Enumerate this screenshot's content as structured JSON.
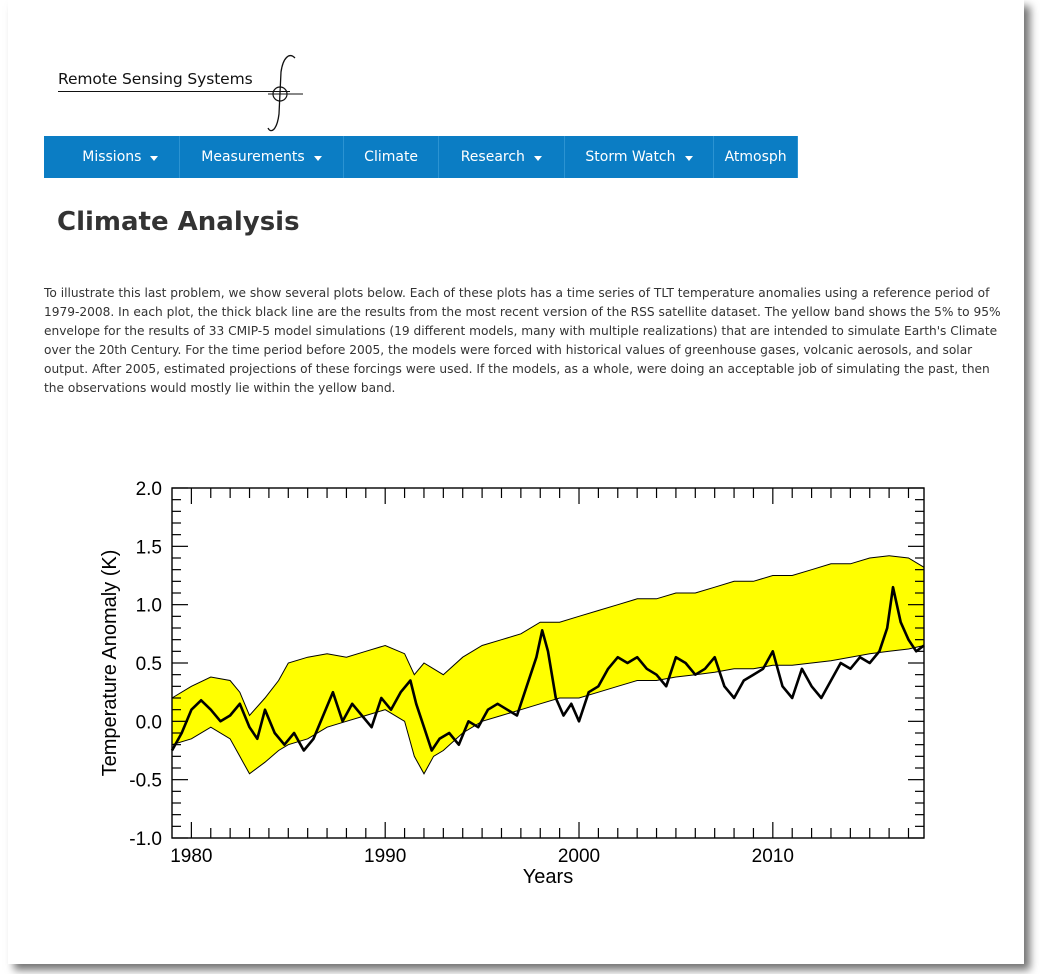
{
  "brand": {
    "name": "Remote Sensing Systems"
  },
  "nav": {
    "items": [
      {
        "label": "Missions",
        "dropdown": true
      },
      {
        "label": "Measurements",
        "dropdown": true
      },
      {
        "label": "Climate",
        "dropdown": false
      },
      {
        "label": "Research",
        "dropdown": true
      },
      {
        "label": "Storm Watch",
        "dropdown": true
      },
      {
        "label": "Atmosph",
        "dropdown": false
      }
    ],
    "color": "#0b7dc4"
  },
  "page": {
    "title": "Climate Analysis",
    "intro": "To illustrate this last problem, we show several plots below.  Each of these plots has a time series of TLT temperature anomalies using a reference period of 1979-2008.  In each plot, the thick black line are the results from the most recent version of the RSS satellite dataset.  The yellow band shows the 5% to 95% envelope for the results of 33 CMIP-5 model simulations (19 different models, many with multiple realizations) that are intended to simulate Earth's Climate over the 20th Century.  For the time period before 2005, the models were forced with historical values of greenhouse gases, volcanic aerosols, and solar output.  After 2005, estimated projections of these forcings were used. If the models, as a whole, were doing an acceptable job of simulating the past, then the observations would mostly lie within the yellow band."
  },
  "chart_data": {
    "type": "area",
    "title": "",
    "xlabel": "Years",
    "ylabel": "Temperature Anomaly (K)",
    "xlim": [
      1979,
      2017.8
    ],
    "ylim": [
      -1.0,
      2.0
    ],
    "xticks": [
      1980,
      1990,
      2000,
      2010
    ],
    "yticks": [
      "2.0",
      "1.5",
      "1.0",
      "0.5",
      "0.0",
      "-0.5",
      "-1.0"
    ],
    "grid": false,
    "band_color": "#ffff00",
    "line_color": "#000000",
    "band": {
      "name": "",
      "x": [
        1979.0,
        1980.0,
        1981.0,
        1982.0,
        1982.5,
        1983.0,
        1983.8,
        1984.5,
        1985.0,
        1986.0,
        1987.0,
        1988.0,
        1989.0,
        1990.0,
        1991.0,
        1991.5,
        1992.0,
        1992.5,
        1993.0,
        1994.0,
        1995.0,
        1996.0,
        1997.0,
        1998.0,
        1999.0,
        2000.0,
        2001.0,
        2002.0,
        2003.0,
        2004.0,
        2005.0,
        2006.0,
        2007.0,
        2008.0,
        2009.0,
        2010.0,
        2011.0,
        2012.0,
        2013.0,
        2014.0,
        2015.0,
        2016.0,
        2017.0,
        2017.8
      ],
      "upper": [
        0.2,
        0.3,
        0.38,
        0.35,
        0.25,
        0.05,
        0.2,
        0.35,
        0.5,
        0.55,
        0.58,
        0.55,
        0.6,
        0.65,
        0.58,
        0.4,
        0.5,
        0.45,
        0.4,
        0.55,
        0.65,
        0.7,
        0.75,
        0.85,
        0.85,
        0.9,
        0.95,
        1.0,
        1.05,
        1.05,
        1.1,
        1.1,
        1.15,
        1.2,
        1.2,
        1.25,
        1.25,
        1.3,
        1.35,
        1.35,
        1.4,
        1.42,
        1.4,
        1.32
      ],
      "lower": [
        -0.2,
        -0.15,
        -0.05,
        -0.15,
        -0.3,
        -0.45,
        -0.35,
        -0.25,
        -0.2,
        -0.15,
        -0.05,
        0.0,
        0.05,
        0.1,
        0.0,
        -0.3,
        -0.45,
        -0.3,
        -0.25,
        -0.1,
        0.0,
        0.05,
        0.1,
        0.15,
        0.2,
        0.2,
        0.25,
        0.3,
        0.35,
        0.35,
        0.38,
        0.4,
        0.42,
        0.45,
        0.45,
        0.48,
        0.48,
        0.5,
        0.52,
        0.55,
        0.58,
        0.6,
        0.62,
        0.65
      ]
    },
    "series": [
      {
        "name": "",
        "x": [
          1979.0,
          1979.5,
          1980.0,
          1980.5,
          1981.0,
          1981.5,
          1982.0,
          1982.5,
          1983.0,
          1983.4,
          1983.8,
          1984.3,
          1984.8,
          1985.3,
          1985.8,
          1986.3,
          1986.8,
          1987.3,
          1987.8,
          1988.3,
          1988.8,
          1989.3,
          1989.8,
          1990.3,
          1990.8,
          1991.3,
          1991.6,
          1992.0,
          1992.4,
          1992.8,
          1993.3,
          1993.8,
          1994.3,
          1994.8,
          1995.3,
          1995.8,
          1996.3,
          1996.8,
          1997.3,
          1997.8,
          1998.1,
          1998.4,
          1998.8,
          1999.2,
          1999.6,
          2000.0,
          2000.5,
          2001.0,
          2001.5,
          2002.0,
          2002.5,
          2003.0,
          2003.5,
          2004.0,
          2004.5,
          2005.0,
          2005.5,
          2006.0,
          2006.5,
          2007.0,
          2007.5,
          2008.0,
          2008.5,
          2009.0,
          2009.5,
          2010.0,
          2010.5,
          2011.0,
          2011.5,
          2012.0,
          2012.5,
          2013.0,
          2013.5,
          2014.0,
          2014.5,
          2015.0,
          2015.5,
          2015.9,
          2016.2,
          2016.6,
          2017.0,
          2017.4,
          2017.8
        ],
        "y": [
          -0.25,
          -0.1,
          0.1,
          0.18,
          0.1,
          0.0,
          0.05,
          0.15,
          -0.05,
          -0.15,
          0.1,
          -0.1,
          -0.2,
          -0.1,
          -0.25,
          -0.15,
          0.05,
          0.25,
          0.0,
          0.15,
          0.05,
          -0.05,
          0.2,
          0.1,
          0.25,
          0.35,
          0.15,
          -0.05,
          -0.25,
          -0.15,
          -0.1,
          -0.2,
          0.0,
          -0.05,
          0.1,
          0.15,
          0.1,
          0.05,
          0.3,
          0.55,
          0.78,
          0.6,
          0.2,
          0.05,
          0.15,
          0.0,
          0.25,
          0.3,
          0.45,
          0.55,
          0.5,
          0.55,
          0.45,
          0.4,
          0.3,
          0.55,
          0.5,
          0.4,
          0.45,
          0.55,
          0.3,
          0.2,
          0.35,
          0.4,
          0.45,
          0.6,
          0.3,
          0.2,
          0.45,
          0.3,
          0.2,
          0.35,
          0.5,
          0.45,
          0.55,
          0.5,
          0.6,
          0.8,
          1.15,
          0.85,
          0.7,
          0.6,
          0.65
        ]
      }
    ]
  }
}
